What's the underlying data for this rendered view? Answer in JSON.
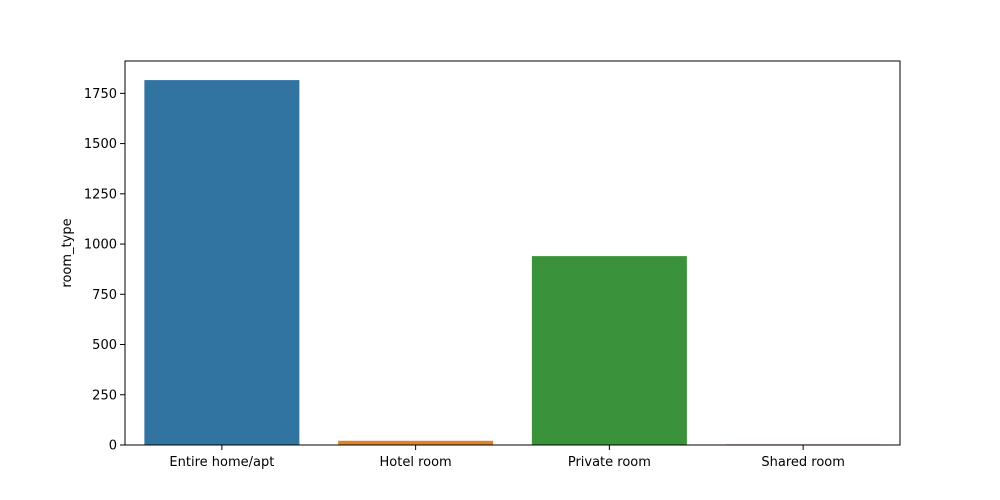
{
  "chart_data": {
    "type": "bar",
    "title": "",
    "xlabel": "",
    "ylabel": "room_type",
    "categories": [
      "Entire home/apt",
      "Hotel room",
      "Private room",
      "Shared room"
    ],
    "values": [
      1816,
      21,
      940,
      3
    ],
    "colors": [
      "#3274a1",
      "#e1812c",
      "#3a923a",
      "#c03d3e"
    ],
    "ylim": [
      0,
      1911
    ],
    "yticks": [
      0,
      250,
      500,
      750,
      1000,
      1250,
      1500,
      1750
    ],
    "grid": false,
    "legend": "none"
  }
}
